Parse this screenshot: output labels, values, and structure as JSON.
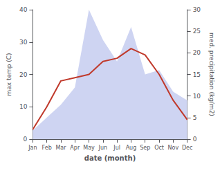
{
  "chart_data": {
    "type": "line",
    "categories": [
      "Jan",
      "Feb",
      "Mar",
      "Apr",
      "May",
      "Jun",
      "Jul",
      "Aug",
      "Sep",
      "Oct",
      "Nov",
      "Dec"
    ],
    "xlabel": "date (month)",
    "ylabel": "max temp (C)",
    "y2label": "med. precipitation (kg/m2)",
    "series": [
      {
        "type": "area",
        "axis": "y2",
        "color": "#c5cdf0",
        "values": [
          2,
          5,
          8,
          12,
          30,
          23,
          18,
          26,
          15,
          16,
          11,
          9
        ]
      },
      {
        "type": "line",
        "color": "#c0392b",
        "values": [
          3,
          10,
          18,
          19,
          20,
          24,
          25,
          28,
          26,
          20,
          12,
          6
        ]
      }
    ],
    "ylim": [
      0,
      40
    ],
    "yticks": [
      0,
      10,
      20,
      30,
      40
    ],
    "y2lim": [
      0,
      30
    ],
    "y2ticks": [
      0,
      5,
      10,
      15,
      20,
      25,
      30
    ],
    "grid": false
  }
}
